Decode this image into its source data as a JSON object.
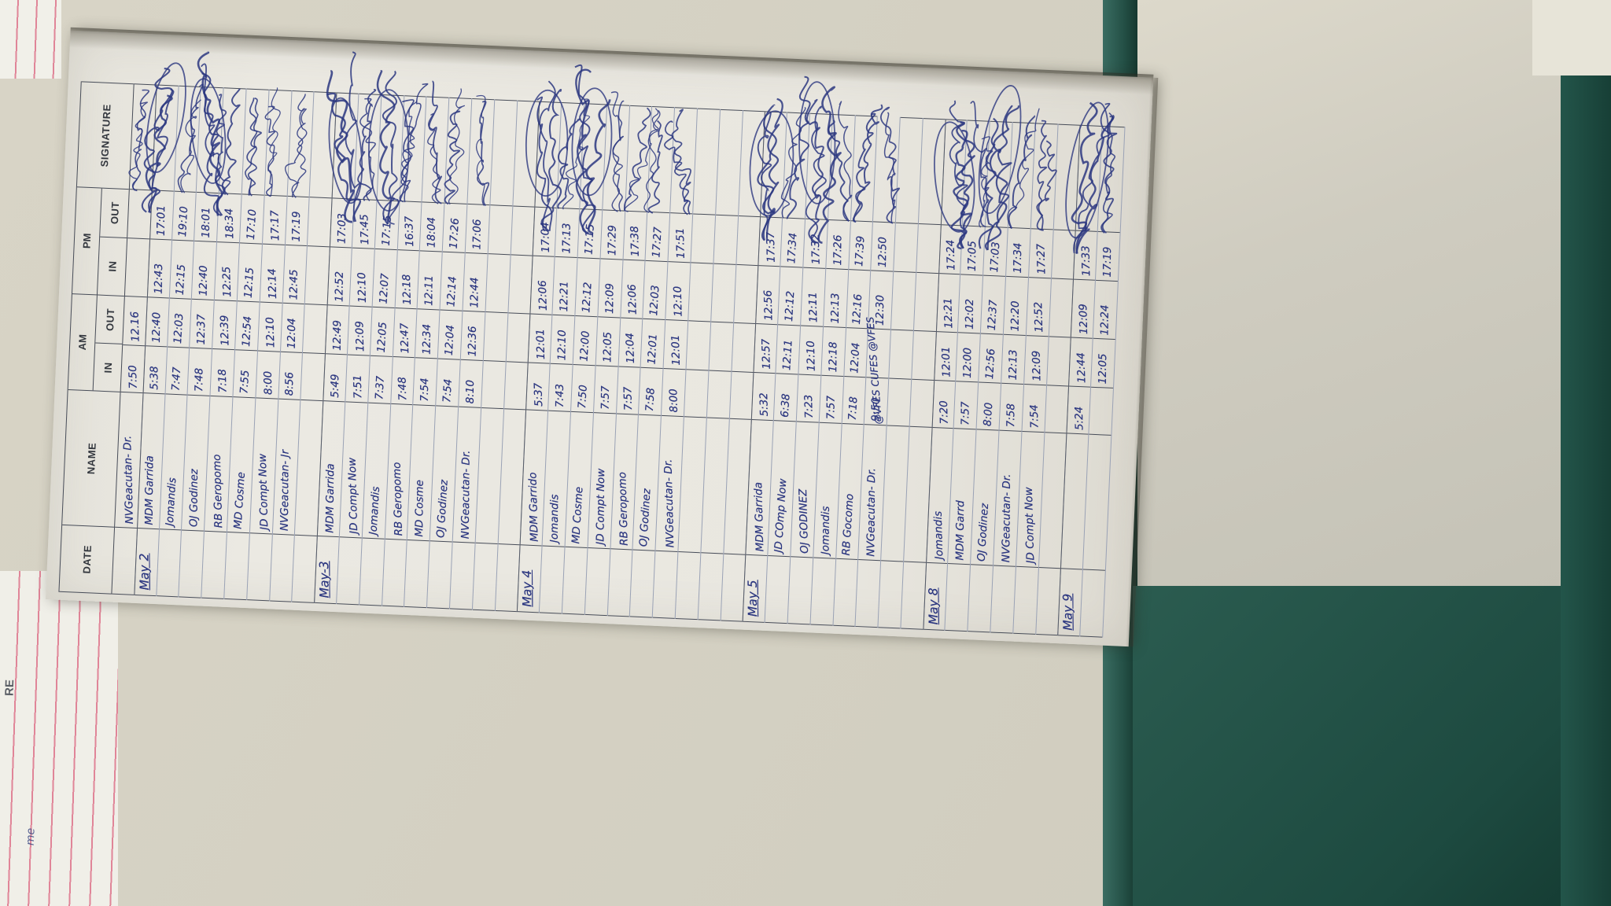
{
  "document_type": "attendance-logbook-photo",
  "colors": {
    "page": "#e9e7e0",
    "ink_blue": "#2c3780",
    "table_line": "#474c58",
    "ruled_line": "#9aa2b5",
    "pink_ruled_line": "#e08598",
    "cover_teal": "#245046",
    "wall_beige": "#d6d2c4"
  },
  "header": {
    "date": "DATE",
    "name": "NAME",
    "am": "AM",
    "pm": "PM",
    "in": "IN",
    "out": "OUT",
    "signature": "SIGNATURE"
  },
  "partial_row": {
    "name": "NVGeacutan- Dr.",
    "am_in": "7:50",
    "am_out": "12.16",
    "pm_in": "",
    "pm_out": ""
  },
  "days": [
    {
      "date": "May 2",
      "blank_rows_after": 1,
      "rows": [
        {
          "name": "MDM Garrida",
          "am_in": "5:38",
          "am_out": "12:40",
          "pm_in": "12:43",
          "pm_out": "17:01"
        },
        {
          "name": "Jomandis",
          "am_in": "7:47",
          "am_out": "12:03",
          "pm_in": "12:15",
          "pm_out": "19:10"
        },
        {
          "name": "OJ Godinez",
          "am_in": "7:48",
          "am_out": "12:37",
          "pm_in": "12:40",
          "pm_out": "18:01"
        },
        {
          "name": "RB Geropomo",
          "am_in": "7:18",
          "am_out": "12:39",
          "pm_in": "12:25",
          "pm_out": "18:34"
        },
        {
          "name": "MD Cosme",
          "am_in": "7:55",
          "am_out": "12:54",
          "pm_in": "12:15",
          "pm_out": "17:10"
        },
        {
          "name": "JD Compt Now",
          "am_in": "8:00",
          "am_out": "12:10",
          "pm_in": "12:14",
          "pm_out": "17:17"
        },
        {
          "name": "NVGeacutan- Jr",
          "am_in": "8:56",
          "am_out": "12:04",
          "pm_in": "12:45",
          "pm_out": "17:19"
        }
      ]
    },
    {
      "date": "May-3",
      "blank_rows_after": 2,
      "rows": [
        {
          "name": "MDM Garrida",
          "am_in": "5:49",
          "am_out": "12:49",
          "pm_in": "12:52",
          "pm_out": "17:03"
        },
        {
          "name": "JD Compt Now",
          "am_in": "7:51",
          "am_out": "12:09",
          "pm_in": "12:10",
          "pm_out": "17:45"
        },
        {
          "name": "Jomandis",
          "am_in": "7:37",
          "am_out": "12:05",
          "pm_in": "12:07",
          "pm_out": "17:15"
        },
        {
          "name": "RB Geropomo",
          "am_in": "7:48",
          "am_out": "12:47",
          "pm_in": "12:18",
          "pm_out": "16:37"
        },
        {
          "name": "MD Cosme",
          "am_in": "7:54",
          "am_out": "12:34",
          "pm_in": "12:11",
          "pm_out": "18:04"
        },
        {
          "name": "OJ Godinez",
          "am_in": "7:54",
          "am_out": "12:04",
          "pm_in": "12:14",
          "pm_out": "17:26"
        },
        {
          "name": "NVGeacutan- Dr.",
          "am_in": "8:10",
          "am_out": "12:36",
          "pm_in": "12:44",
          "pm_out": "17:06"
        }
      ]
    },
    {
      "date": "May 4",
      "blank_rows_after": 3,
      "rows": [
        {
          "name": "MDM Garrido",
          "am_in": "5:37",
          "am_out": "12:01",
          "pm_in": "12:06",
          "pm_out": "17:04"
        },
        {
          "name": "Jomandis",
          "am_in": "7:43",
          "am_out": "12:10",
          "pm_in": "12:21",
          "pm_out": "17:13"
        },
        {
          "name": "MD Cosme",
          "am_in": "7:50",
          "am_out": "12:00",
          "pm_in": "12:12",
          "pm_out": "17:15"
        },
        {
          "name": "JD Compt Now",
          "am_in": "7:57",
          "am_out": "12:05",
          "pm_in": "12:09",
          "pm_out": "17:29"
        },
        {
          "name": "RB Geropomo",
          "am_in": "7:57",
          "am_out": "12:04",
          "pm_in": "12:06",
          "pm_out": "17:38"
        },
        {
          "name": "OJ Godinez",
          "am_in": "7:58",
          "am_out": "12:01",
          "pm_in": "12:03",
          "pm_out": "17:27"
        },
        {
          "name": "NVGeacutan- Dr.",
          "am_in": "8:00",
          "am_out": "12:01",
          "pm_in": "12:10",
          "pm_out": "17:51"
        }
      ]
    },
    {
      "date": "May 5",
      "blank_rows_after": 2,
      "rows": [
        {
          "name": "MDM Garrida",
          "am_in": "5:32",
          "am_out": "12:57",
          "pm_in": "12:56",
          "pm_out": "17:37"
        },
        {
          "name": "JD COmp Now",
          "am_in": "6:38",
          "am_out": "12:11",
          "pm_in": "12:12",
          "pm_out": "17:34"
        },
        {
          "name": "OJ GODINEZ",
          "am_in": "7:23",
          "am_out": "12:10",
          "pm_in": "12:11",
          "pm_out": "17:32"
        },
        {
          "name": "Jomandis",
          "am_in": "7:57",
          "am_out": "12:18",
          "pm_in": "12:13",
          "pm_out": "17:26"
        },
        {
          "name": "RB Gocomo",
          "am_in": "7:18",
          "am_out": "12:04",
          "pm_in": "12:16",
          "pm_out": "17:39"
        },
        {
          "name": "NVGeacutan- Dr.",
          "am_in": "9:50",
          "am_out": "",
          "pm_in": "12:30",
          "pm_out": "12:50",
          "note": "vfes"
        }
      ]
    },
    {
      "date": "May 8",
      "blank_rows_after": 1,
      "rows": [
        {
          "name": "Jomandis",
          "am_in": "7:20",
          "am_out": "12:01",
          "pm_in": "12:21",
          "pm_out": "17:24"
        },
        {
          "name": "MDM Garrd",
          "am_in": "7:57",
          "am_out": "12:00",
          "pm_in": "12:02",
          "pm_out": "17:05"
        },
        {
          "name": "OJ Godinez",
          "am_in": "8:00",
          "am_out": "12:56",
          "pm_in": "12:37",
          "pm_out": "17:03"
        },
        {
          "name": "NVGeacutan- Dr.",
          "am_in": "7:58",
          "am_out": "12:13",
          "pm_in": "12:20",
          "pm_out": "17:34"
        },
        {
          "name": "JD Compt Now",
          "am_in": "7:54",
          "am_out": "12:09",
          "pm_in": "12:52",
          "pm_out": "17:27"
        }
      ]
    },
    {
      "date": "May 9",
      "blank_rows_after": 0,
      "rows": [
        {
          "name": "",
          "am_in": "5:24",
          "am_out": "12:44",
          "pm_in": "12:09",
          "pm_out": "17:33"
        },
        {
          "name": "",
          "am_in": "",
          "am_out": "12:05",
          "pm_in": "12:24",
          "pm_out": "17:19"
        }
      ]
    }
  ],
  "annotations": {
    "vfes": "@VFES CUFES @VFES",
    "behind_page_letters": "RE",
    "behind_page_scribble": "me"
  }
}
